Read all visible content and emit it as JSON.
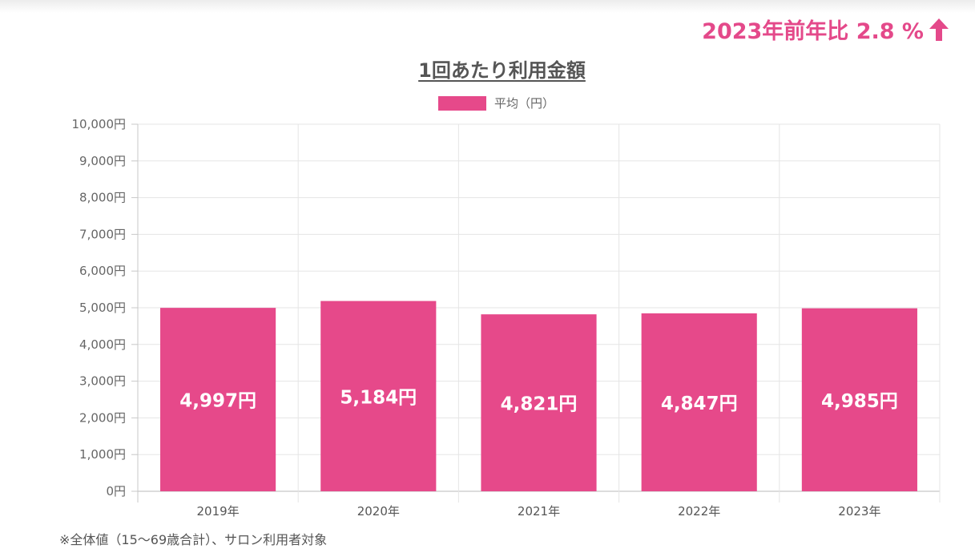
{
  "header": {
    "yoy_label": "2023年前年比 2.8 %",
    "arrow_icon": "arrow-up-icon",
    "accent_color": "#e4498a"
  },
  "chart_data": {
    "type": "bar",
    "title": "1回あたり利用金額",
    "xlabel": "",
    "ylabel": "",
    "categories": [
      "2019年",
      "2020年",
      "2021年",
      "2022年",
      "2023年"
    ],
    "series": [
      {
        "name": "平均（円）",
        "values": [
          4997,
          5184,
          4821,
          4847,
          4985
        ],
        "labels": [
          "4,997円",
          "5,184円",
          "4,821円",
          "4,847円",
          "4,985円"
        ],
        "color": "#e6498a"
      }
    ],
    "ylim": [
      0,
      10000
    ],
    "yticks": [
      0,
      1000,
      2000,
      3000,
      4000,
      5000,
      6000,
      7000,
      8000,
      9000,
      10000
    ],
    "ytick_labels": [
      "0円",
      "1,000円",
      "2,000円",
      "3,000円",
      "4,000円",
      "5,000円",
      "6,000円",
      "7,000円",
      "8,000円",
      "9,000円",
      "10,000円"
    ],
    "grid": true,
    "legend_position": "top-center"
  },
  "footnote": "※全体値（15〜69歳合計）、サロン利用者対象"
}
